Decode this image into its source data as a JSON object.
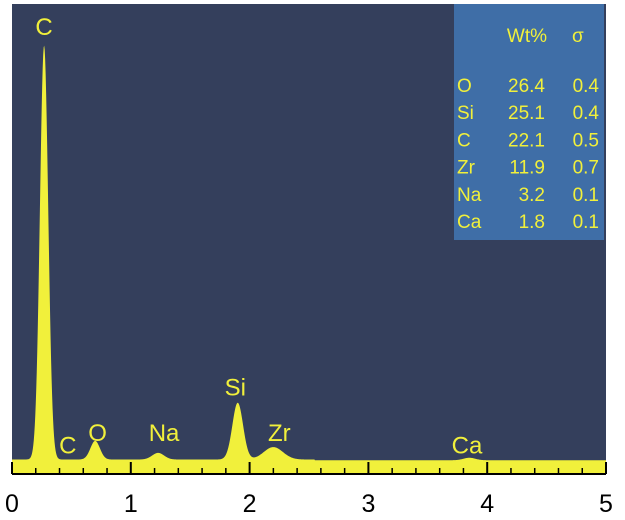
{
  "chart_data": {
    "type": "area",
    "title": "",
    "xlabel": "",
    "ylabel": "",
    "xlim": [
      0,
      5
    ],
    "ylim": [
      0,
      100
    ],
    "x_ticks": [
      "0",
      "1",
      "2",
      "3",
      "4",
      "5"
    ],
    "grid": false,
    "baseline": 3.5,
    "peaks": [
      {
        "label": "C",
        "x": 0.27,
        "height": 100,
        "width": 0.035
      },
      {
        "label": "O",
        "x": 0.7,
        "height": 4.5,
        "width": 0.04
      },
      {
        "label": "Na",
        "x": 1.23,
        "height": 1.6,
        "width": 0.05
      },
      {
        "label": "Si",
        "x": 1.9,
        "height": 13.7,
        "width": 0.045
      },
      {
        "label": "Zr",
        "x": 2.2,
        "height": 3.0,
        "width": 0.08
      },
      {
        "label": "Ca",
        "x": 3.85,
        "height": 0.6,
        "width": 0.05
      }
    ],
    "peak_labels": [
      {
        "label": "C",
        "x": 0.27,
        "y": 106
      },
      {
        "label": "C",
        "x": 0.47,
        "y": 5
      },
      {
        "label": "O",
        "x": 0.72,
        "y": 8
      },
      {
        "label": "Na",
        "x": 1.28,
        "y": 8
      },
      {
        "label": "Si",
        "x": 1.88,
        "y": 19
      },
      {
        "label": "Zr",
        "x": 2.25,
        "y": 8
      },
      {
        "label": "Ca",
        "x": 3.83,
        "y": 5
      }
    ],
    "composition_table": {
      "headers": [
        "",
        "Wt%",
        "σ"
      ],
      "rows": [
        [
          "O",
          "26.4",
          "0.4"
        ],
        [
          "Si",
          "25.1",
          "0.4"
        ],
        [
          "C",
          "22.1",
          "0.5"
        ],
        [
          "Zr",
          "11.9",
          "0.7"
        ],
        [
          "Na",
          "3.2",
          "0.1"
        ],
        [
          "Ca",
          "1.8",
          "0.1"
        ]
      ]
    },
    "colors": {
      "background": "#343f5c",
      "spectrum": "#f1f03b",
      "table_bg": "#3f6ea7",
      "text": "#f1f03b",
      "axis": "#000000"
    }
  }
}
